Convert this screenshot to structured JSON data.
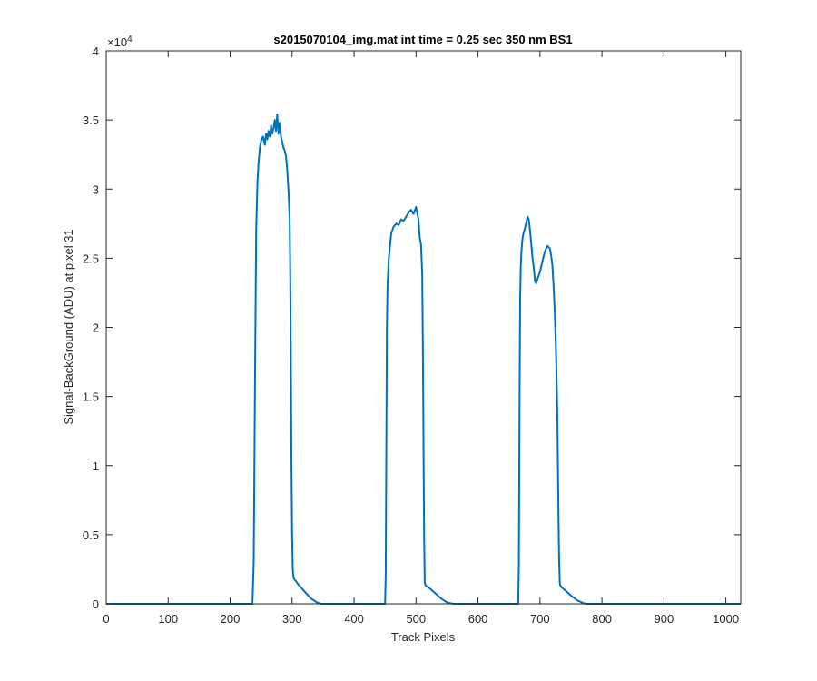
{
  "chart_data": {
    "type": "line",
    "title": "s2015070104_img.mat int time = 0.25 sec  350 nm BS1",
    "xlabel": "Track Pixels",
    "ylabel": "Signal-BackGround (ADU) at pixel 31",
    "y_exponent_label": "×10",
    "y_exponent_power": "4",
    "xlim": [
      0,
      1024
    ],
    "ylim": [
      0,
      40000
    ],
    "x_ticks": [
      0,
      100,
      200,
      300,
      400,
      500,
      600,
      700,
      800,
      900,
      1000
    ],
    "x_tick_labels": [
      "0",
      "100",
      "200",
      "300",
      "400",
      "500",
      "600",
      "700",
      "800",
      "900",
      "1000"
    ],
    "y_ticks": [
      0,
      5000,
      10000,
      15000,
      20000,
      25000,
      30000,
      35000,
      40000
    ],
    "y_tick_labels": [
      "0",
      "0.5",
      "1",
      "1.5",
      "2",
      "2.5",
      "3",
      "3.5",
      "4"
    ],
    "grid": false,
    "line_color": "#0072BD",
    "series": [
      {
        "x": [
          0,
          236,
          238,
          240,
          242,
          244,
          246,
          248,
          250,
          253,
          256,
          258,
          260,
          262,
          264,
          266,
          268,
          270,
          272,
          274,
          276,
          278,
          280,
          282,
          284,
          286,
          288,
          290,
          292,
          294,
          296,
          297,
          298,
          299,
          300,
          301,
          302,
          303,
          304,
          305,
          306,
          310,
          320,
          330,
          340,
          346,
          350,
          450,
          451,
          452,
          453,
          454,
          456,
          460,
          464,
          468,
          472,
          476,
          480,
          484,
          488,
          492,
          496,
          500,
          504,
          506,
          508,
          510,
          511,
          512,
          513,
          514,
          516,
          520,
          530,
          540,
          550,
          560,
          565,
          665,
          666,
          667,
          668,
          669,
          670,
          672,
          674,
          676,
          678,
          680,
          682,
          684,
          686,
          688,
          690,
          692,
          694,
          696,
          700,
          704,
          708,
          712,
          716,
          718,
          720,
          722,
          724,
          726,
          728,
          729,
          730,
          731,
          732,
          733,
          735,
          740,
          750,
          760,
          770,
          775,
          1024
        ],
        "y": [
          0,
          0,
          3000,
          15000,
          27000,
          30500,
          32000,
          33000,
          33500,
          33800,
          33200,
          34000,
          33600,
          34200,
          33800,
          34600,
          34000,
          34400,
          35000,
          34200,
          35400,
          34000,
          34800,
          33800,
          33400,
          33000,
          32800,
          32400,
          31500,
          30000,
          28000,
          24000,
          18000,
          10000,
          5000,
          2500,
          2000,
          1800,
          1750,
          1700,
          1650,
          1400,
          900,
          400,
          100,
          0,
          0,
          0,
          2000,
          10000,
          20000,
          23000,
          25000,
          26800,
          27300,
          27500,
          27400,
          27800,
          27700,
          28000,
          28300,
          28500,
          28200,
          28700,
          27800,
          26500,
          26000,
          24000,
          19000,
          12000,
          5000,
          1500,
          1300,
          1200,
          800,
          400,
          100,
          0,
          0,
          0,
          3000,
          14000,
          22000,
          24500,
          25500,
          26500,
          26900,
          27200,
          27600,
          28000,
          27800,
          27000,
          26000,
          25000,
          24300,
          23300,
          23200,
          23500,
          24000,
          24800,
          25500,
          25900,
          25700,
          25200,
          24500,
          23000,
          21000,
          18000,
          14000,
          10000,
          6000,
          3000,
          1500,
          1300,
          1200,
          1000,
          600,
          250,
          50,
          0,
          0
        ]
      }
    ]
  }
}
